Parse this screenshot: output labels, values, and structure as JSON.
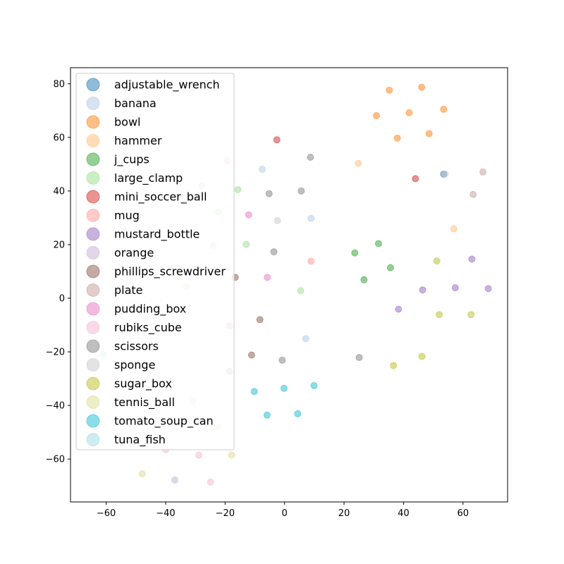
{
  "chart_data": {
    "type": "scatter",
    "title": "",
    "xlabel": "",
    "ylabel": "",
    "xlim": [
      -72,
      75
    ],
    "ylim": [
      -76,
      86
    ],
    "xticks": [
      -60,
      -40,
      -20,
      0,
      20,
      40,
      60
    ],
    "yticks": [
      -60,
      -40,
      -20,
      0,
      20,
      40,
      60,
      80
    ],
    "xtick_labels": [
      "−60",
      "−40",
      "−20",
      "0",
      "20",
      "40",
      "60"
    ],
    "ytick_labels": [
      "−60",
      "−40",
      "−20",
      "0",
      "20",
      "40",
      "60",
      "80"
    ],
    "grid": false,
    "legend_position": "upper-left",
    "series": [
      {
        "name": "adjustable_wrench",
        "color": "#1f77b4",
        "points": [
          [
            53.5,
            46.3
          ]
        ]
      },
      {
        "name": "banana",
        "color": "#aec7e8",
        "points": [
          [
            -7.5,
            48.1
          ],
          [
            8.9,
            29.8
          ],
          [
            -24,
            19.7
          ],
          [
            7.1,
            -15.1
          ],
          [
            -27.8,
            41.9
          ]
        ]
      },
      {
        "name": "bowl",
        "color": "#ff7f0e",
        "points": [
          [
            35.2,
            77.6
          ],
          [
            46.1,
            78.7
          ],
          [
            30.9,
            68.1
          ],
          [
            41.9,
            69.2
          ],
          [
            53.5,
            70.5
          ],
          [
            37.9,
            59.7
          ],
          [
            48.6,
            61.4
          ]
        ]
      },
      {
        "name": "hammer",
        "color": "#ffbb78",
        "points": [
          [
            24.8,
            50.3
          ],
          [
            56.9,
            25.9
          ]
        ]
      },
      {
        "name": "j_cups",
        "color": "#2ca02c",
        "points": [
          [
            23.6,
            16.9
          ],
          [
            31.6,
            20.4
          ],
          [
            35.6,
            11.4
          ],
          [
            26.7,
            6.9
          ]
        ]
      },
      {
        "name": "large_clamp",
        "color": "#98df8a",
        "points": [
          [
            -15.7,
            40.5
          ],
          [
            -22.3,
            32.2
          ],
          [
            -12.9,
            20.1
          ],
          [
            5.4,
            2.8
          ]
        ]
      },
      {
        "name": "mini_soccer_ball",
        "color": "#d62728",
        "points": [
          [
            -2.6,
            59.1
          ],
          [
            44,
            44.6
          ]
        ]
      },
      {
        "name": "mug",
        "color": "#ff9896",
        "points": [
          [
            8.9,
            13.8
          ]
        ]
      },
      {
        "name": "mustard_bottle",
        "color": "#9467bd",
        "points": [
          [
            63,
            14.6
          ],
          [
            46.4,
            3.1
          ],
          [
            57.4,
            3.9
          ],
          [
            68.5,
            3.6
          ],
          [
            38.3,
            -4.1
          ]
        ]
      },
      {
        "name": "orange",
        "color": "#c5b0d5",
        "points": [
          [
            -36.9,
            -67.8
          ]
        ]
      },
      {
        "name": "phillips_screwdriver",
        "color": "#8c564b",
        "points": [
          [
            -16.6,
            7.8
          ],
          [
            -8.3,
            -8
          ],
          [
            -11.1,
            -21.2
          ]
        ]
      },
      {
        "name": "plate",
        "color": "#c49c94",
        "points": [
          [
            66.7,
            47.1
          ],
          [
            63.4,
            38.7
          ],
          [
            -18.5,
            -10.3
          ],
          [
            -18.5,
            -27.2
          ]
        ]
      },
      {
        "name": "pudding_box",
        "color": "#e377c2",
        "points": [
          [
            -12.1,
            31.1
          ],
          [
            -5.8,
            7.8
          ]
        ]
      },
      {
        "name": "rubiks_cube",
        "color": "#f7b6d2",
        "points": [
          [
            -19.2,
            51.4
          ],
          [
            -30.9,
            -38.4
          ],
          [
            -40,
            -56.5
          ],
          [
            -28.8,
            -58.5
          ],
          [
            -24.9,
            -68.6
          ]
        ]
      },
      {
        "name": "scissors",
        "color": "#7f7f7f",
        "points": [
          [
            8.7,
            52.6
          ],
          [
            -5.2,
            39
          ],
          [
            5.6,
            40
          ],
          [
            -3.6,
            17.3
          ],
          [
            -0.8,
            -23.1
          ],
          [
            25.1,
            -22.1
          ]
        ]
      },
      {
        "name": "sponge",
        "color": "#c7c7c7",
        "points": [
          [
            -2.4,
            29
          ],
          [
            54,
            46.3
          ]
        ]
      },
      {
        "name": "sugar_box",
        "color": "#bcbd22",
        "points": [
          [
            51.2,
            13.9
          ],
          [
            52,
            -6.1
          ],
          [
            62.7,
            -6.1
          ],
          [
            36.6,
            -25.1
          ],
          [
            46.2,
            -21.7
          ]
        ]
      },
      {
        "name": "tennis_ball",
        "color": "#dbdb8d",
        "points": [
          [
            -33,
            4.3
          ],
          [
            -22.4,
            -47.9
          ],
          [
            -17.8,
            -58.5
          ],
          [
            -47.9,
            -65.5
          ]
        ]
      },
      {
        "name": "tomato_soup_can",
        "color": "#17becf",
        "points": [
          [
            -10.2,
            -34.8
          ],
          [
            -0.2,
            -33.6
          ],
          [
            9.9,
            -32.6
          ],
          [
            -5.9,
            -43.6
          ],
          [
            4.4,
            -43.1
          ]
        ]
      },
      {
        "name": "tuna_fish",
        "color": "#9edae5",
        "points": [
          [
            -61,
            -20.9
          ]
        ]
      }
    ]
  }
}
